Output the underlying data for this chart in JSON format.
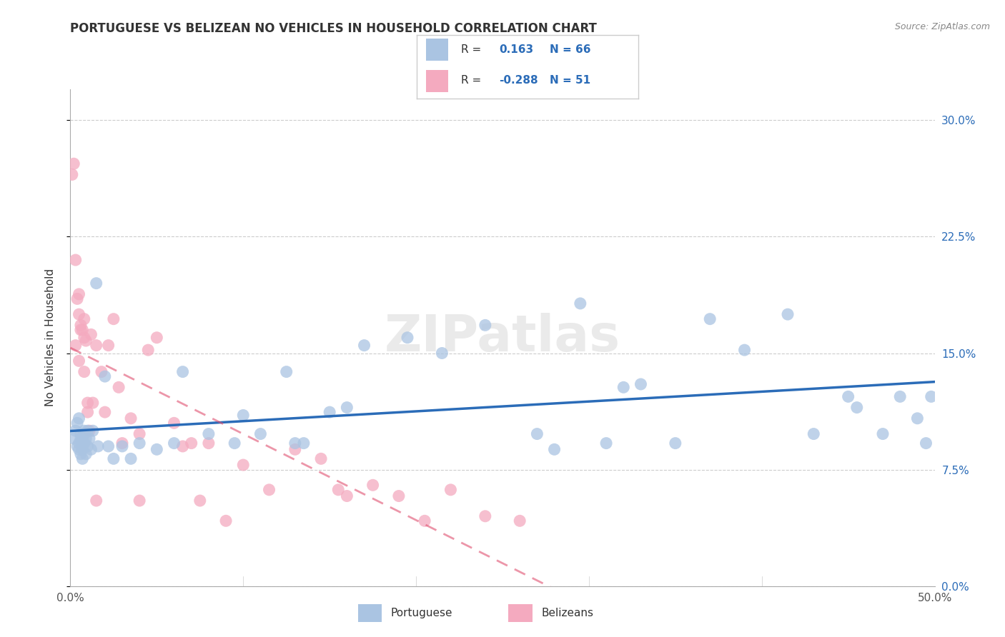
{
  "title": "PORTUGUESE VS BELIZEAN NO VEHICLES IN HOUSEHOLD CORRELATION CHART",
  "source": "Source: ZipAtlas.com",
  "ylabel": "No Vehicles in Household",
  "xlim": [
    0.0,
    0.5
  ],
  "ylim": [
    0.0,
    0.32
  ],
  "xticks": [
    0.0,
    0.1,
    0.2,
    0.3,
    0.4,
    0.5
  ],
  "xticklabels": [
    "0.0%",
    "",
    "",
    "",
    "",
    "50.0%"
  ],
  "yticks": [
    0.0,
    0.075,
    0.15,
    0.225,
    0.3
  ],
  "yticklabels_right": [
    "0.0%",
    "7.5%",
    "15.0%",
    "22.5%",
    "30.0%"
  ],
  "grid_color": "#cccccc",
  "background_color": "#ffffff",
  "portuguese_color": "#aac4e2",
  "belizean_color": "#f4aabf",
  "portuguese_line_color": "#2b6cb8",
  "belizean_line_color": "#e05070",
  "R_portuguese": 0.163,
  "N_portuguese": 66,
  "R_belizean": -0.288,
  "N_belizean": 51,
  "portuguese_scatter_x": [
    0.002,
    0.003,
    0.004,
    0.004,
    0.005,
    0.005,
    0.006,
    0.006,
    0.007,
    0.007,
    0.007,
    0.008,
    0.008,
    0.009,
    0.009,
    0.01,
    0.01,
    0.011,
    0.012,
    0.013,
    0.015,
    0.016,
    0.02,
    0.022,
    0.025,
    0.03,
    0.035,
    0.04,
    0.05,
    0.06,
    0.065,
    0.08,
    0.095,
    0.1,
    0.11,
    0.125,
    0.135,
    0.15,
    0.16,
    0.17,
    0.195,
    0.215,
    0.24,
    0.27,
    0.295,
    0.31,
    0.33,
    0.35,
    0.37,
    0.39,
    0.415,
    0.43,
    0.455,
    0.47,
    0.48,
    0.49,
    0.495,
    0.498,
    0.005,
    0.006,
    0.007,
    0.008,
    0.13,
    0.28,
    0.32,
    0.45
  ],
  "portuguese_scatter_y": [
    0.095,
    0.1,
    0.09,
    0.105,
    0.088,
    0.092,
    0.085,
    0.098,
    0.082,
    0.095,
    0.088,
    0.092,
    0.1,
    0.085,
    0.095,
    0.09,
    0.1,
    0.095,
    0.088,
    0.1,
    0.195,
    0.09,
    0.135,
    0.09,
    0.082,
    0.09,
    0.082,
    0.092,
    0.088,
    0.092,
    0.138,
    0.098,
    0.092,
    0.11,
    0.098,
    0.138,
    0.092,
    0.112,
    0.115,
    0.155,
    0.16,
    0.15,
    0.168,
    0.098,
    0.182,
    0.092,
    0.13,
    0.092,
    0.172,
    0.152,
    0.175,
    0.098,
    0.115,
    0.098,
    0.122,
    0.108,
    0.092,
    0.122,
    0.108,
    0.095,
    0.092,
    0.098,
    0.092,
    0.088,
    0.128,
    0.122
  ],
  "belizean_scatter_x": [
    0.001,
    0.002,
    0.003,
    0.004,
    0.005,
    0.005,
    0.006,
    0.006,
    0.007,
    0.008,
    0.008,
    0.009,
    0.01,
    0.01,
    0.011,
    0.012,
    0.013,
    0.015,
    0.018,
    0.02,
    0.022,
    0.025,
    0.028,
    0.03,
    0.035,
    0.04,
    0.045,
    0.05,
    0.06,
    0.065,
    0.07,
    0.075,
    0.08,
    0.09,
    0.1,
    0.115,
    0.13,
    0.145,
    0.16,
    0.175,
    0.19,
    0.205,
    0.22,
    0.24,
    0.26,
    0.155,
    0.003,
    0.005,
    0.008,
    0.015,
    0.04
  ],
  "belizean_scatter_y": [
    0.265,
    0.272,
    0.21,
    0.185,
    0.175,
    0.188,
    0.165,
    0.168,
    0.165,
    0.172,
    0.16,
    0.158,
    0.112,
    0.118,
    0.1,
    0.162,
    0.118,
    0.155,
    0.138,
    0.112,
    0.155,
    0.172,
    0.128,
    0.092,
    0.108,
    0.098,
    0.152,
    0.16,
    0.105,
    0.09,
    0.092,
    0.055,
    0.092,
    0.042,
    0.078,
    0.062,
    0.088,
    0.082,
    0.058,
    0.065,
    0.058,
    0.042,
    0.062,
    0.045,
    0.042,
    0.062,
    0.155,
    0.145,
    0.138,
    0.055,
    0.055
  ]
}
